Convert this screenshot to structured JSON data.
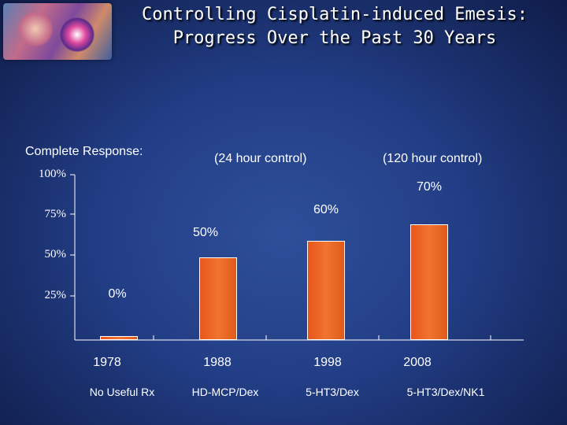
{
  "slide": {
    "title_line1": "Controlling Cisplatin-induced Emesis:",
    "title_line2": "Progress Over the Past 30 Years",
    "logo_description": "logo-image"
  },
  "labels": {
    "complete_response": "Complete Response:",
    "control_24": "(24 hour control)",
    "control_120": "(120 hour control)"
  },
  "chart_data": {
    "type": "bar",
    "title": "Controlling Cisplatin-induced Emesis: Progress Over the Past 30 Years",
    "ylabel": "Complete Response:",
    "xlabel": "",
    "ylim": [
      0,
      100
    ],
    "yticks": [
      "100%",
      "75%",
      "50%",
      "25%"
    ],
    "ytick_values": [
      100,
      75,
      50,
      25
    ],
    "categories": [
      "1978",
      "1988",
      "1998",
      "2008"
    ],
    "subcategories": [
      "No Useful Rx",
      "HD-MCP/Dex",
      "5-HT3/Dex",
      "5-HT3/Dex/NK1"
    ],
    "values": [
      0,
      50,
      60,
      70
    ],
    "data_labels": [
      "0%",
      "50%",
      "60%",
      "70%"
    ],
    "annotations": [
      "(24 hour control)",
      "(120 hour control)"
    ]
  },
  "colors": {
    "bar": "#f07430",
    "background": "#223e86",
    "text": "#ffffff"
  }
}
